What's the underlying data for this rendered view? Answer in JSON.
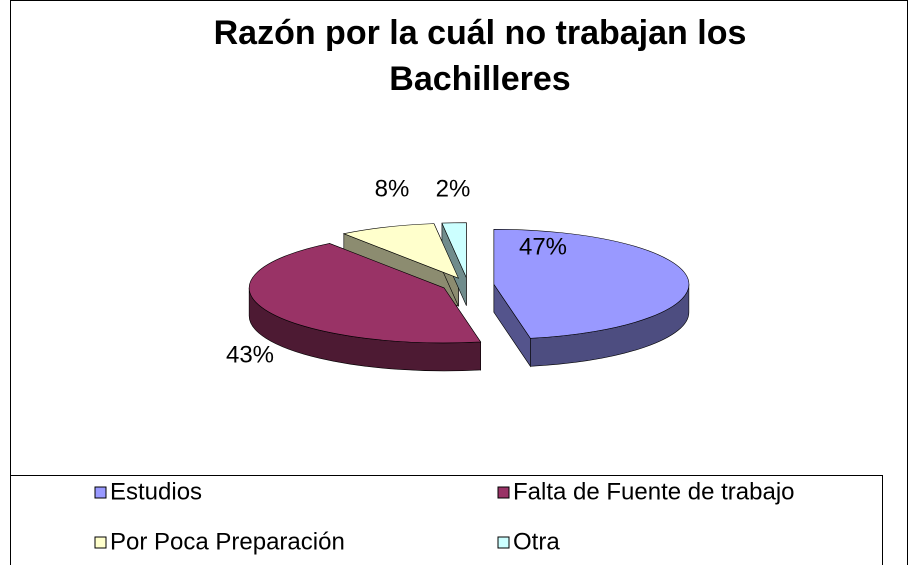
{
  "chart_data": {
    "type": "pie3d",
    "title": "Razón por la cuál no trabajan los Bachilleres",
    "categories": [
      "Estudios",
      "Falta de Fuente de trabajo",
      "Por Poca Preparación",
      "Otra"
    ],
    "values": [
      47,
      43,
      8,
      2
    ],
    "value_labels": [
      "47%",
      "43%",
      "8%",
      "2%"
    ],
    "colors": [
      "#9999ff",
      "#993366",
      "#ffffcc",
      "#ccffff"
    ],
    "legend": "bottom"
  }
}
